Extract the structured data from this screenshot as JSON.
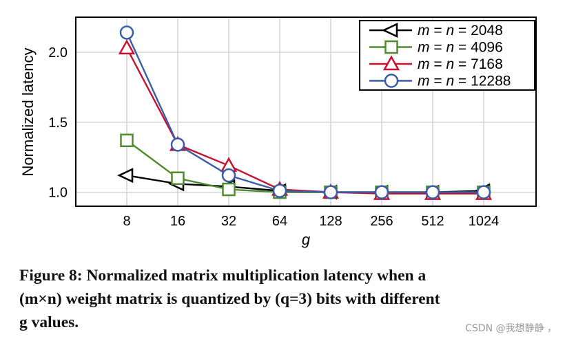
{
  "chart_data": {
    "type": "line",
    "xlabel": "g",
    "ylabel": "Normalized latency",
    "categories": [
      "8",
      "16",
      "32",
      "64",
      "128",
      "256",
      "512",
      "1024"
    ],
    "ylim": [
      0.9,
      2.25
    ],
    "yticks": [
      1.0,
      1.5,
      2.0
    ],
    "ytick_labels": [
      "1.0",
      "1.5",
      "2.0"
    ],
    "grid": true,
    "legend_position": "top-right",
    "series": [
      {
        "name": "m = n = 2048",
        "m_label": "m",
        "eq1": " = ",
        "n_label": "n",
        "eq2": " = ",
        "size": "2048",
        "color": "#000000",
        "marker": "triangle-left",
        "values": [
          1.12,
          1.06,
          1.04,
          1.01,
          1.0,
          1.0,
          1.0,
          1.01
        ]
      },
      {
        "name": "m = n = 4096",
        "m_label": "m",
        "eq1": " = ",
        "n_label": "n",
        "eq2": " = ",
        "size": "4096",
        "color": "#4e8a2e",
        "marker": "square",
        "values": [
          1.37,
          1.1,
          1.02,
          1.0,
          1.0,
          1.0,
          1.0,
          1.0
        ]
      },
      {
        "name": "m = n = 7168",
        "m_label": "m",
        "eq1": " = ",
        "n_label": "n",
        "eq2": " = ",
        "size": "7168",
        "color": "#c8102e",
        "marker": "triangle-up",
        "values": [
          2.03,
          1.34,
          1.19,
          1.02,
          1.0,
          0.99,
          0.99,
          0.99
        ]
      },
      {
        "name": "m = n = 12288",
        "m_label": "m",
        "eq1": " = ",
        "n_label": "n",
        "eq2": " = ",
        "size": "12288",
        "color": "#3a5ca8",
        "marker": "circle",
        "values": [
          2.14,
          1.34,
          1.12,
          1.01,
          1.0,
          1.0,
          1.0,
          1.0
        ]
      }
    ]
  },
  "caption": {
    "line1": "Figure 8: Normalized matrix multiplication latency when a",
    "line2": "(m×n) weight matrix is quantized by (q=3) bits with different",
    "line3": "g values."
  },
  "watermark": "CSDN @我想静静 ，"
}
